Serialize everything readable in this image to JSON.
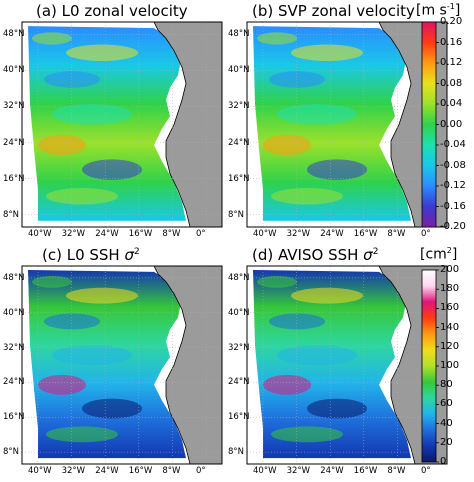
{
  "panels": {
    "a": {
      "title": "(a) L0 zonal velocity"
    },
    "b": {
      "title": "(b) SVP zonal velocity"
    },
    "c": {
      "title_prefix": "(c) L0 SSH ",
      "title_symbol": "σ",
      "title_sup": "2"
    },
    "d": {
      "title_prefix": "(d) AVISO SSH ",
      "title_symbol": "σ",
      "title_sup": "2"
    }
  },
  "axes": {
    "lat_ticks": [
      "48°N",
      "40°N",
      "32°N",
      "24°N",
      "16°N",
      "8°N"
    ],
    "lon_ticks": [
      "40°W",
      "32°W",
      "24°W",
      "16°W",
      "8°W",
      "0°"
    ]
  },
  "colorbar_velocity": {
    "unit_prefix": "[m s",
    "unit_sup": "-1",
    "unit_suffix": "]",
    "ticks": [
      "0.20",
      "0.16",
      "0.12",
      "0.08",
      "0.04",
      "0.00",
      "-0.04",
      "-0.08",
      "-0.12",
      "-0.16",
      "-0.20"
    ],
    "range": [
      -0.2,
      0.2
    ],
    "colors": [
      "#7b1fa2",
      "#3b3bd0",
      "#2a8cff",
      "#19c8e8",
      "#1ee0b0",
      "#2fd24a",
      "#9be12a",
      "#e8e21e",
      "#ff9a12",
      "#ff3b14",
      "#e01464"
    ]
  },
  "colorbar_ssh": {
    "unit_prefix": "[cm",
    "unit_sup": "2",
    "unit_suffix": "]",
    "ticks": [
      "200",
      "180",
      "160",
      "140",
      "120",
      "100",
      "80",
      "60",
      "40",
      "20",
      "0"
    ],
    "range": [
      0,
      200
    ],
    "colors": [
      "#0a1a6e",
      "#1337b0",
      "#1e6edc",
      "#22b4ea",
      "#2ed6a0",
      "#36c83a",
      "#b2e02a",
      "#f0dd1c",
      "#ff9a12",
      "#ff3b14",
      "#e0147a",
      "#ffd6f0",
      "#ffffff"
    ]
  },
  "colors": {
    "land": "#9b9b9b",
    "coast": "#000000",
    "grid": "#b0b0b0"
  }
}
